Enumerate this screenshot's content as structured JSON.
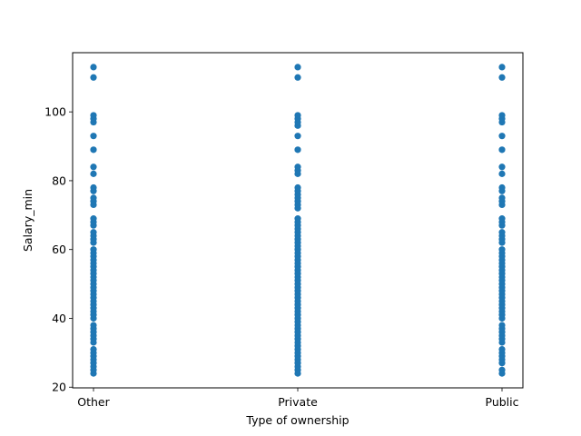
{
  "chart_data": {
    "type": "scatter",
    "xlabel": "Type of ownership",
    "ylabel": "Salary_min",
    "categories": [
      "Other",
      "Private",
      "Public"
    ],
    "ylim": [
      19.8,
      117.2
    ],
    "yticks": [
      20,
      40,
      60,
      80,
      100
    ],
    "grid": false,
    "color": "#1f77b4",
    "series": [
      {
        "category": "Other",
        "values": [
          24,
          25,
          26,
          27,
          28,
          29,
          30,
          31,
          33,
          34,
          35,
          36,
          37,
          38,
          40,
          41,
          42,
          43,
          44,
          45,
          46,
          47,
          48,
          49,
          50,
          51,
          52,
          53,
          54,
          55,
          56,
          57,
          58,
          59,
          60,
          62,
          63,
          64,
          65,
          67,
          68,
          69,
          73,
          74,
          75,
          77,
          78,
          82,
          84,
          89,
          93,
          97,
          98,
          99,
          110,
          113
        ]
      },
      {
        "category": "Private",
        "values": [
          24,
          25,
          26,
          27,
          28,
          29,
          30,
          31,
          32,
          33,
          34,
          35,
          36,
          37,
          38,
          39,
          40,
          41,
          42,
          43,
          44,
          45,
          46,
          47,
          48,
          49,
          50,
          51,
          52,
          53,
          54,
          55,
          56,
          57,
          58,
          59,
          60,
          61,
          62,
          63,
          64,
          65,
          66,
          67,
          68,
          69,
          72,
          73,
          74,
          75,
          76,
          77,
          78,
          82,
          83,
          84,
          89,
          93,
          96,
          97,
          98,
          99,
          110,
          113
        ]
      },
      {
        "category": "Public",
        "values": [
          24,
          25,
          27,
          28,
          29,
          30,
          31,
          33,
          34,
          35,
          36,
          37,
          38,
          40,
          41,
          42,
          43,
          44,
          45,
          46,
          47,
          48,
          49,
          50,
          51,
          52,
          53,
          54,
          55,
          56,
          57,
          58,
          59,
          60,
          62,
          63,
          64,
          65,
          67,
          68,
          69,
          73,
          74,
          75,
          77,
          78,
          82,
          84,
          89,
          93,
          97,
          98,
          99,
          110,
          113
        ]
      }
    ]
  }
}
